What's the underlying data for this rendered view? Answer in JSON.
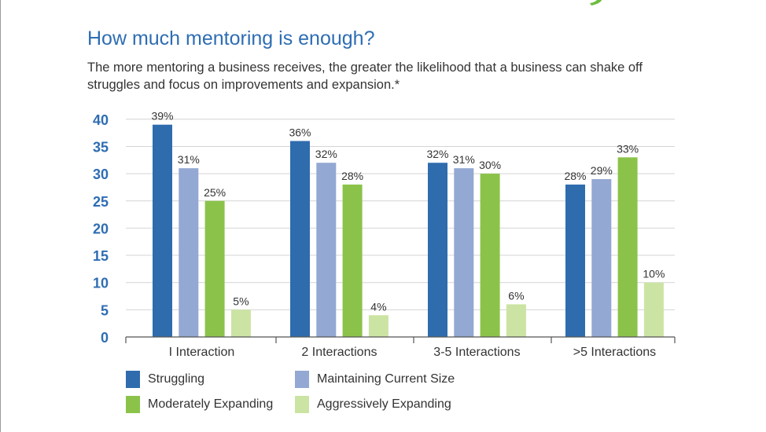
{
  "title": "How much mentoring is enough?",
  "subtitle": "The more mentoring a business receives, the greater the likelihood that a business can shake off struggles and focus on improvements and expansion.*",
  "colors": {
    "struggling": "#2f6cae",
    "maintaining": "#93a8d2",
    "moderate": "#8bc34a",
    "aggressive": "#cce4a3",
    "accent": "#2e6db3",
    "swoosh": "#6cbd3f"
  },
  "chart_data": {
    "type": "bar",
    "categories": [
      "I Interaction",
      "2 Interactions",
      "3-5 Interactions",
      ">5 Interactions"
    ],
    "series": [
      {
        "name": "Struggling",
        "values": [
          39,
          36,
          32,
          28
        ],
        "labels": [
          "39%",
          "36%",
          "32%",
          "28%"
        ],
        "color": "#2f6cae"
      },
      {
        "name": "Maintaining Current Size",
        "values": [
          31,
          32,
          31,
          29
        ],
        "labels": [
          "31%",
          "32%",
          "31%",
          "29%"
        ],
        "color": "#93a8d2"
      },
      {
        "name": "Moderately Expanding",
        "values": [
          25,
          28,
          30,
          33
        ],
        "labels": [
          "25%",
          "28%",
          "30%",
          "33%"
        ],
        "color": "#8bc34a"
      },
      {
        "name": "Aggressively Expanding",
        "values": [
          5,
          4,
          6,
          10
        ],
        "labels": [
          "5%",
          "4%",
          "6%",
          "10%"
        ],
        "color": "#cce4a3"
      }
    ],
    "yticks": [
      "0",
      "5",
      "10",
      "15",
      "20",
      "25",
      "30",
      "35",
      "40"
    ],
    "ylim": [
      0,
      40
    ],
    "grid": true,
    "legend_position": "bottom"
  },
  "legend": [
    {
      "label": "Struggling",
      "color": "#2f6cae"
    },
    {
      "label": "Maintaining Current Size",
      "color": "#93a8d2"
    },
    {
      "label": "Moderately Expanding",
      "color": "#8bc34a"
    },
    {
      "label": "Aggressively Expanding",
      "color": "#cce4a3"
    }
  ]
}
